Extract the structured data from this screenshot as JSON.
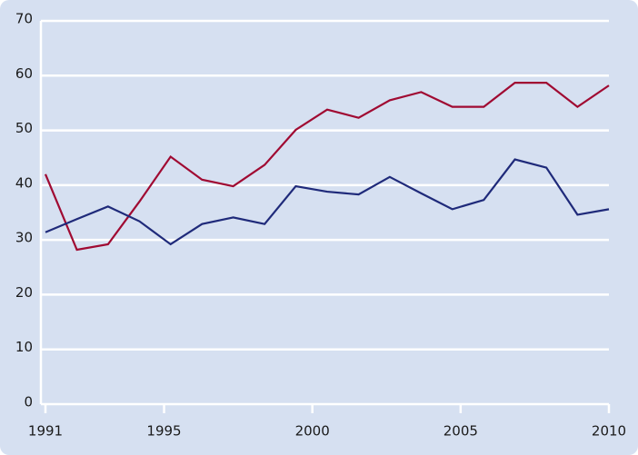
{
  "chart_data": {
    "type": "line",
    "x": [
      1991,
      1992.06,
      1993.11,
      1994.17,
      1995.22,
      1996.28,
      1997.33,
      1998.39,
      1999.44,
      2000.5,
      2001.56,
      2002.61,
      2003.67,
      2004.72,
      2005.78,
      2006.83,
      2007.89,
      2008.94,
      2010
    ],
    "series": [
      {
        "color": "#a00a32",
        "values": [
          42.0,
          28.2,
          29.2,
          37.0,
          45.2,
          41.0,
          39.8,
          43.7,
          50.1,
          53.8,
          52.3,
          55.5,
          57.0,
          54.3,
          54.3,
          58.7,
          58.7,
          54.3,
          58.2
        ]
      },
      {
        "color": "#1f2a7a",
        "values": [
          31.4,
          33.8,
          36.1,
          33.4,
          29.2,
          32.9,
          34.1,
          32.9,
          39.8,
          38.8,
          38.3,
          41.5,
          38.5,
          35.6,
          37.3,
          44.7,
          43.2,
          34.6,
          35.6
        ]
      }
    ],
    "xlim": [
      1991,
      2010
    ],
    "xticks": [
      1991,
      1995,
      2000,
      2005,
      2010
    ],
    "ylim": [
      0,
      70
    ],
    "yticks": [
      0,
      10,
      20,
      30,
      40,
      50,
      60,
      70
    ],
    "grid": true
  }
}
